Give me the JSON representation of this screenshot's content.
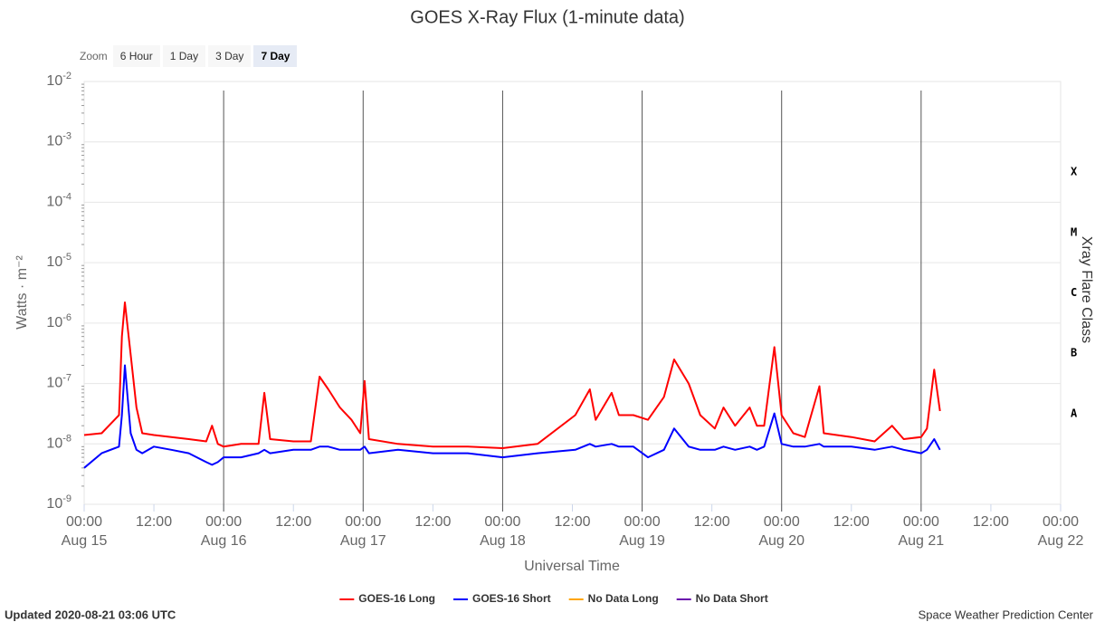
{
  "chart_data": {
    "type": "line",
    "title": "GOES X-Ray Flux (1-minute data)",
    "zoom": {
      "label": "Zoom",
      "options": [
        "6 Hour",
        "1 Day",
        "3 Day",
        "7 Day"
      ],
      "selected": "7 Day"
    },
    "xlabel": "Universal Time",
    "ylabel": "Watts · m⁻²",
    "y2label": "Xray Flare Class",
    "log_y": true,
    "grid": true,
    "xlim": [
      "Aug 15 00:00",
      "Aug 22 00:00"
    ],
    "xticks": [
      {
        "value": "Aug 15 00:00",
        "label": "00:00",
        "date": "Aug 15"
      },
      {
        "value": "Aug 15 12:00",
        "label": "12:00"
      },
      {
        "value": "Aug 16 00:00",
        "label": "00:00",
        "date": "Aug 16"
      },
      {
        "value": "Aug 16 12:00",
        "label": "12:00"
      },
      {
        "value": "Aug 17 00:00",
        "label": "00:00",
        "date": "Aug 17"
      },
      {
        "value": "Aug 17 12:00",
        "label": "12:00"
      },
      {
        "value": "Aug 18 00:00",
        "label": "00:00",
        "date": "Aug 18"
      },
      {
        "value": "Aug 18 12:00",
        "label": "12:00"
      },
      {
        "value": "Aug 19 00:00",
        "label": "00:00",
        "date": "Aug 19"
      },
      {
        "value": "Aug 19 12:00",
        "label": "12:00"
      },
      {
        "value": "Aug 20 00:00",
        "label": "00:00",
        "date": "Aug 20"
      },
      {
        "value": "Aug 20 12:00",
        "label": "12:00"
      },
      {
        "value": "Aug 21 00:00",
        "label": "00:00",
        "date": "Aug 21"
      },
      {
        "value": "Aug 21 12:00",
        "label": "12:00"
      },
      {
        "value": "Aug 22 00:00",
        "label": "00:00",
        "date": "Aug 22"
      }
    ],
    "ylim": [
      1e-09,
      0.01
    ],
    "yticks": [
      {
        "value": 1e-09,
        "label": "10-9"
      },
      {
        "value": 1e-08,
        "label": "10-8"
      },
      {
        "value": 1e-07,
        "label": "10-7"
      },
      {
        "value": 1e-06,
        "label": "10-6"
      },
      {
        "value": 1e-05,
        "label": "10-5"
      },
      {
        "value": 0.0001,
        "label": "10-4"
      },
      {
        "value": 0.001,
        "label": "10-3"
      },
      {
        "value": 0.01,
        "label": "10-2"
      }
    ],
    "flare_classes": [
      {
        "label": "A",
        "value": 1e-08
      },
      {
        "label": "B",
        "value": 1e-07
      },
      {
        "label": "C",
        "value": 1e-06
      },
      {
        "label": "M",
        "value": 1e-05
      },
      {
        "label": "X",
        "value": 0.0001
      }
    ],
    "x": [
      "Aug 15 00:00",
      "Aug 15 03:00",
      "Aug 15 06:00",
      "Aug 15 06:30",
      "Aug 15 07:00",
      "Aug 15 08:00",
      "Aug 15 09:00",
      "Aug 15 10:00",
      "Aug 15 12:00",
      "Aug 15 15:00",
      "Aug 15 18:00",
      "Aug 15 21:00",
      "Aug 15 22:00",
      "Aug 15 23:00",
      "Aug 16 00:00",
      "Aug 16 03:00",
      "Aug 16 06:00",
      "Aug 16 07:00",
      "Aug 16 08:00",
      "Aug 16 12:00",
      "Aug 16 15:00",
      "Aug 16 16:30",
      "Aug 16 18:00",
      "Aug 16 20:00",
      "Aug 16 22:00",
      "Aug 16 23:30",
      "Aug 17 00:15",
      "Aug 17 01:00",
      "Aug 17 06:00",
      "Aug 17 12:00",
      "Aug 17 18:00",
      "Aug 18 00:00",
      "Aug 18 06:00",
      "Aug 18 12:30",
      "Aug 18 15:00",
      "Aug 18 16:00",
      "Aug 18 18:45",
      "Aug 18 20:00",
      "Aug 18 22:30",
      "Aug 19 01:00",
      "Aug 19 03:45",
      "Aug 19 05:30",
      "Aug 19 08:00",
      "Aug 19 10:00",
      "Aug 19 12:30",
      "Aug 19 14:00",
      "Aug 19 16:00",
      "Aug 19 18:30",
      "Aug 19 19:45",
      "Aug 19 21:00",
      "Aug 19 22:45",
      "Aug 20 00:00",
      "Aug 20 02:00",
      "Aug 20 04:00",
      "Aug 20 06:30",
      "Aug 20 07:15",
      "Aug 20 12:00",
      "Aug 20 16:00",
      "Aug 20 19:00",
      "Aug 20 21:00",
      "Aug 21 00:00",
      "Aug 21 01:00",
      "Aug 21 02:15",
      "Aug 21 03:15"
    ],
    "series": [
      {
        "name": "GOES-16 Long",
        "color": "#ff0000",
        "values": [
          1.4e-08,
          1.5e-08,
          3e-08,
          6e-07,
          2.2e-06,
          3e-07,
          4e-08,
          1.5e-08,
          1.4e-08,
          1.3e-08,
          1.2e-08,
          1.1e-08,
          2e-08,
          1e-08,
          9e-09,
          1e-08,
          1e-08,
          7e-08,
          1.2e-08,
          1.1e-08,
          1.1e-08,
          1.3e-07,
          8e-08,
          4e-08,
          2.5e-08,
          1.5e-08,
          1.1e-07,
          1.2e-08,
          1e-08,
          9e-09,
          9e-09,
          8.5e-09,
          1e-08,
          3e-08,
          8e-08,
          2.5e-08,
          7e-08,
          3e-08,
          3e-08,
          2.5e-08,
          6e-08,
          2.5e-07,
          1e-07,
          3e-08,
          1.8e-08,
          4e-08,
          2e-08,
          4e-08,
          2e-08,
          2e-08,
          4e-07,
          3e-08,
          1.5e-08,
          1.3e-08,
          9e-08,
          1.5e-08,
          1.3e-08,
          1.1e-08,
          2e-08,
          1.2e-08,
          1.3e-08,
          1.8e-08,
          1.7e-07,
          3.5e-08
        ]
      },
      {
        "name": "GOES-16 Short",
        "color": "#0000ff",
        "values": [
          4e-09,
          7e-09,
          9e-09,
          3e-08,
          2e-07,
          1.5e-08,
          8e-09,
          7e-09,
          9e-09,
          8e-09,
          7e-09,
          5e-09,
          4.5e-09,
          5e-09,
          6e-09,
          6e-09,
          7e-09,
          8e-09,
          7e-09,
          8e-09,
          8e-09,
          9e-09,
          9e-09,
          8e-09,
          8e-09,
          8e-09,
          9e-09,
          7e-09,
          8e-09,
          7e-09,
          7e-09,
          6e-09,
          7e-09,
          8e-09,
          1e-08,
          9e-09,
          1e-08,
          9e-09,
          9e-09,
          6e-09,
          8e-09,
          1.8e-08,
          9e-09,
          8e-09,
          8e-09,
          9e-09,
          8e-09,
          9e-09,
          8e-09,
          9e-09,
          3.2e-08,
          1e-08,
          9e-09,
          9e-09,
          1e-08,
          9e-09,
          9e-09,
          8e-09,
          9e-09,
          8e-09,
          7e-09,
          8e-09,
          1.2e-08,
          8e-09
        ]
      }
    ],
    "legend_extra": [
      {
        "name": "No Data Long",
        "color": "#ffa500"
      },
      {
        "name": "No Data Short",
        "color": "#6a0dad"
      }
    ],
    "footer_left": "Updated 2020-08-21 03:06 UTC",
    "footer_right": "Space Weather Prediction Center"
  }
}
